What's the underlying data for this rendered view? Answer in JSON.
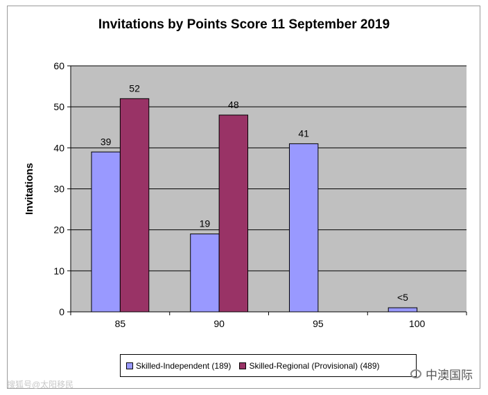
{
  "chart_data": {
    "type": "bar",
    "title": "Invitations by Points Score 11 September 2019",
    "xlabel": "",
    "ylabel": "Invitations",
    "ylim": [
      0,
      60
    ],
    "yticks": [
      0,
      10,
      20,
      30,
      40,
      50,
      60
    ],
    "categories": [
      "85",
      "90",
      "95",
      "100"
    ],
    "grid": true,
    "legend_position": "bottom",
    "series": [
      {
        "name": "Skilled-Independent (189)",
        "color": "#9999ff",
        "values": [
          39,
          19,
          41,
          1
        ],
        "labels": [
          "39",
          "19",
          "41",
          "<5"
        ]
      },
      {
        "name": "Skilled-Regional (Provisional) (489)",
        "color": "#993366",
        "values": [
          52,
          48,
          null,
          null
        ],
        "labels": [
          "52",
          "48",
          "",
          ""
        ]
      }
    ],
    "plot_background": "#c0c0c0"
  },
  "watermarks": {
    "left": "搜狐号@太阳移民",
    "right": "中澳国际"
  }
}
